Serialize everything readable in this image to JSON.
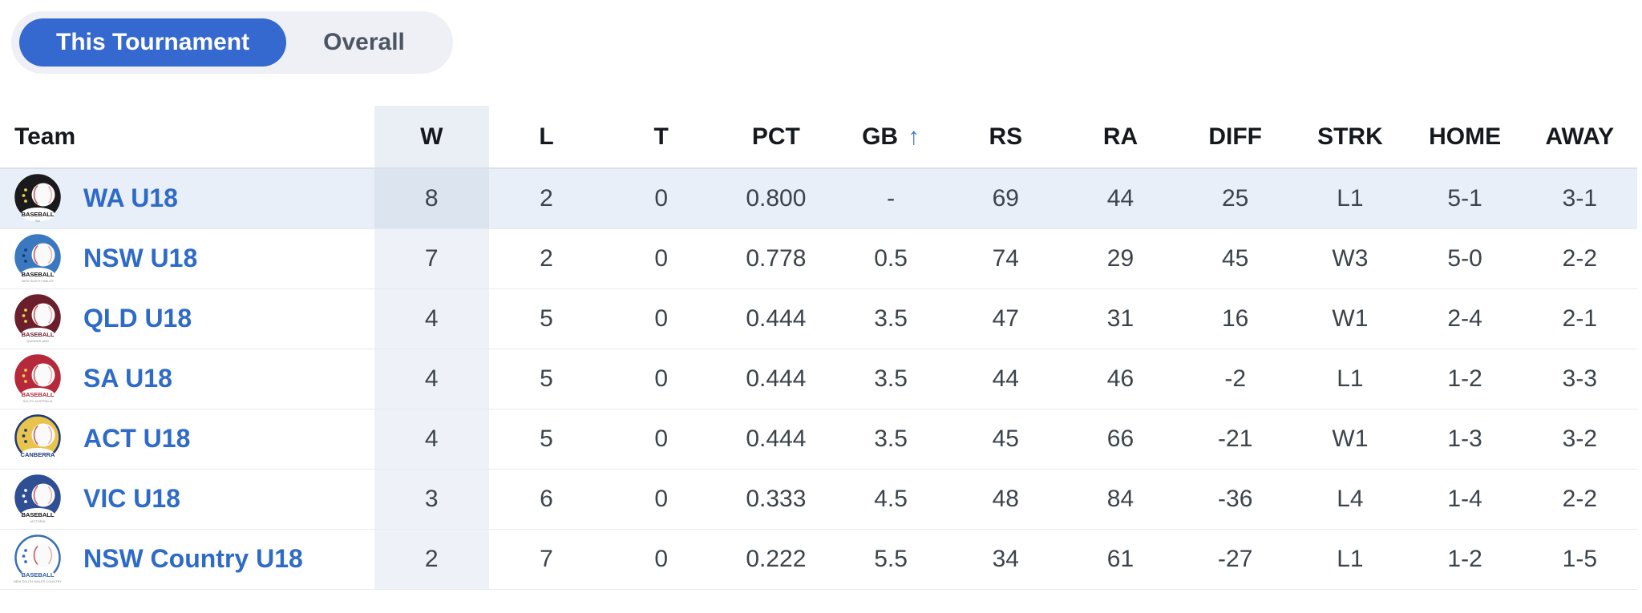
{
  "toggle": {
    "options": [
      {
        "label": "This Tournament",
        "selected": true
      },
      {
        "label": "Overall",
        "selected": false
      }
    ]
  },
  "table": {
    "columns": [
      {
        "key": "team",
        "label": "Team"
      },
      {
        "key": "w",
        "label": "W"
      },
      {
        "key": "l",
        "label": "L"
      },
      {
        "key": "t",
        "label": "T"
      },
      {
        "key": "pct",
        "label": "PCT"
      },
      {
        "key": "gb",
        "label": "GB",
        "sorted": true
      },
      {
        "key": "rs",
        "label": "RS"
      },
      {
        "key": "ra",
        "label": "RA"
      },
      {
        "key": "diff",
        "label": "DIFF"
      },
      {
        "key": "strk",
        "label": "STRK"
      },
      {
        "key": "home",
        "label": "HOME"
      },
      {
        "key": "away",
        "label": "AWAY"
      }
    ],
    "sort": {
      "column": "GB",
      "direction": "ascending",
      "icon": "↑"
    },
    "rows": [
      {
        "team": "WA U18",
        "highlighted": true,
        "w": "8",
        "l": "2",
        "t": "0",
        "pct": "0.800",
        "gb": "-",
        "rs": "69",
        "ra": "44",
        "diff": "25",
        "strk": "L1",
        "home": "5-1",
        "away": "3-1",
        "logo": {
          "bg": "#1a1a1c",
          "ring": "#1a1a1c",
          "dots": "#e8d44a",
          "text": "BASEBALL",
          "sub": "WA",
          "text_color": "#111111"
        }
      },
      {
        "team": "NSW U18",
        "highlighted": false,
        "w": "7",
        "l": "2",
        "t": "0",
        "pct": "0.778",
        "gb": "0.5",
        "rs": "74",
        "ra": "29",
        "diff": "45",
        "strk": "W3",
        "home": "5-0",
        "away": "2-2",
        "logo": {
          "bg": "#3a79c0",
          "ring": "#3a79c0",
          "dots": "#1f3a6e",
          "text": "BASEBALL",
          "sub": "NEW SOUTH WALES",
          "text_color": "#111111"
        }
      },
      {
        "team": "QLD U18",
        "highlighted": false,
        "w": "4",
        "l": "5",
        "t": "0",
        "pct": "0.444",
        "gb": "3.5",
        "rs": "47",
        "ra": "31",
        "diff": "16",
        "strk": "W1",
        "home": "2-4",
        "away": "2-1",
        "logo": {
          "bg": "#6b1f2c",
          "ring": "#6b1f2c",
          "dots": "#e8d44a",
          "text": "BASEBALL",
          "sub": "QUEENSLAND",
          "text_color": "#6b1f2c"
        }
      },
      {
        "team": "SA U18",
        "highlighted": false,
        "w": "4",
        "l": "5",
        "t": "0",
        "pct": "0.444",
        "gb": "3.5",
        "rs": "44",
        "ra": "46",
        "diff": "-2",
        "strk": "L1",
        "home": "1-2",
        "away": "3-3",
        "logo": {
          "bg": "#b5293a",
          "ring": "#b5293a",
          "dots": "#e8d44a",
          "text": "BASEBALL",
          "sub": "SOUTH AUSTRALIA",
          "text_color": "#b5293a"
        }
      },
      {
        "team": "ACT U18",
        "highlighted": false,
        "w": "4",
        "l": "5",
        "t": "0",
        "pct": "0.444",
        "gb": "3.5",
        "rs": "45",
        "ra": "66",
        "diff": "-21",
        "strk": "W1",
        "home": "1-3",
        "away": "3-2",
        "logo": {
          "bg": "#e9c44c",
          "ring": "#1f3a7a",
          "dots": "#1f3a7a",
          "text": "CANBERRA",
          "sub": "",
          "text_color": "#1f3a7a"
        }
      },
      {
        "team": "VIC U18",
        "highlighted": false,
        "w": "3",
        "l": "6",
        "t": "0",
        "pct": "0.333",
        "gb": "4.5",
        "rs": "48",
        "ra": "84",
        "diff": "-36",
        "strk": "L4",
        "home": "1-4",
        "away": "2-2",
        "logo": {
          "bg": "#2e4f93",
          "ring": "#2e4f93",
          "dots": "#ffffff",
          "text": "BASEBALL",
          "sub": "VICTORIA",
          "text_color": "#111111"
        }
      },
      {
        "team": "NSW Country U18",
        "highlighted": false,
        "w": "2",
        "l": "7",
        "t": "0",
        "pct": "0.222",
        "gb": "5.5",
        "rs": "34",
        "ra": "61",
        "diff": "-27",
        "strk": "L1",
        "home": "1-2",
        "away": "1-5",
        "logo": {
          "bg": "#ffffff",
          "ring": "#3a6fb5",
          "dots": "#3a6fb5",
          "text": "BASEBALL",
          "sub": "NEW SOUTH WALES COUNTRY",
          "text_color": "#2d5fa8"
        }
      }
    ]
  },
  "colors": {
    "accent_blue": "#3569cf",
    "toggle_bg": "#eef0f5",
    "toggle_inactive_text": "#4b5563",
    "team_link": "#2e6bc8",
    "sort_arrow": "#3f7ad6",
    "header_text": "#15181d",
    "cell_text": "#3c434b",
    "row_highlight": "#e9eff9",
    "w_band": "#eef1f8",
    "w_band_header": "#eaeef5",
    "w_band_highlight": "#dce4f0"
  }
}
